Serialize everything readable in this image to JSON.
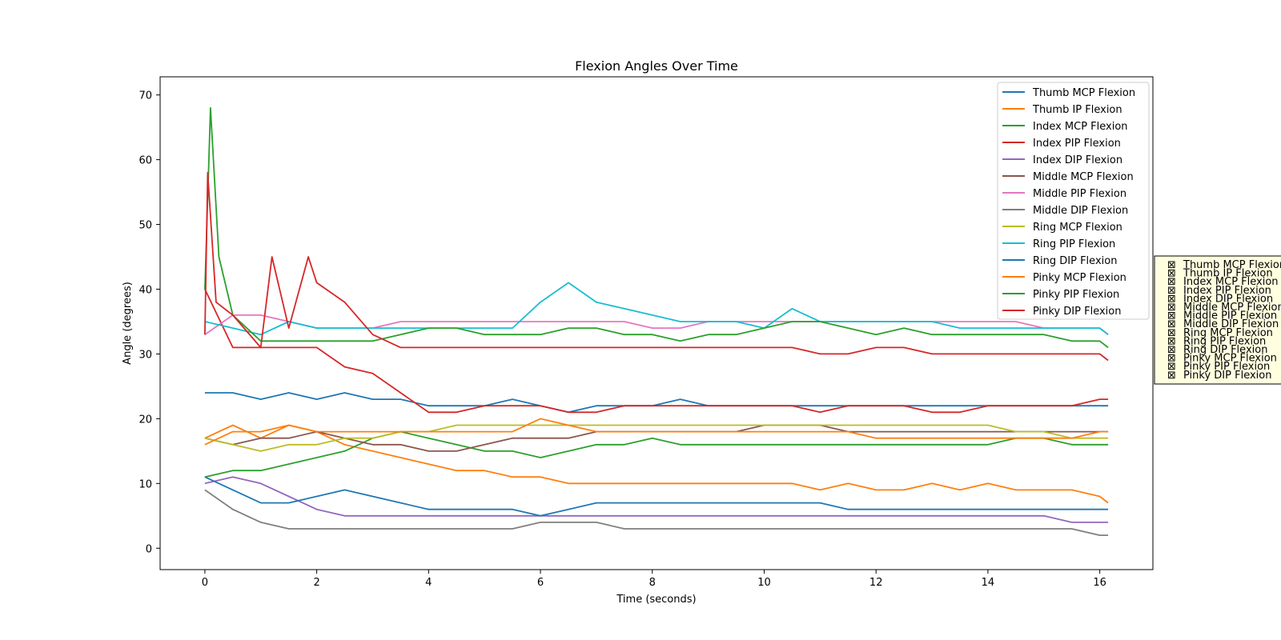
{
  "chart_data": {
    "type": "line",
    "title": "Flexion Angles Over Time",
    "xlabel": "Time (seconds)",
    "ylabel": "Angle (degrees)",
    "xlim": [
      -0.8,
      16.95
    ],
    "ylim": [
      -3.3,
      72.8
    ],
    "xticks": [
      0,
      2,
      4,
      6,
      8,
      10,
      12,
      14,
      16
    ],
    "yticks": [
      0,
      10,
      20,
      30,
      40,
      50,
      60,
      70
    ],
    "grid": false,
    "legend_position": "top-right",
    "series": [
      {
        "name": "Thumb MCP Flexion",
        "color": "#1f77b4",
        "x": [
          0,
          0.5,
          1,
          1.5,
          2,
          2.5,
          3,
          3.5,
          4,
          4.5,
          5,
          5.5,
          6,
          6.5,
          7,
          7.5,
          8,
          8.5,
          9,
          9.5,
          10,
          10.5,
          11,
          11.5,
          12,
          12.5,
          13,
          13.5,
          14,
          14.5,
          15,
          15.5,
          16,
          16.15
        ],
        "y": [
          24,
          24,
          23,
          24,
          23,
          24,
          23,
          23,
          22,
          22,
          22,
          23,
          22,
          21,
          22,
          22,
          22,
          23,
          22,
          22,
          22,
          22,
          22,
          22,
          22,
          22,
          22,
          22,
          22,
          22,
          22,
          22,
          22,
          22
        ]
      },
      {
        "name": "Thumb IP Flexion",
        "color": "#ff7f0e",
        "x": [
          0,
          0.5,
          1,
          1.5,
          2,
          2.5,
          3,
          3.5,
          4,
          4.5,
          5,
          5.5,
          6,
          6.5,
          7,
          7.5,
          8,
          8.5,
          9,
          9.5,
          10,
          10.5,
          11,
          11.5,
          12,
          12.5,
          13,
          13.5,
          14,
          14.5,
          15,
          15.5,
          16,
          16.15
        ],
        "y": [
          17,
          19,
          17,
          19,
          18,
          16,
          15,
          14,
          13,
          12,
          12,
          11,
          11,
          10,
          10,
          10,
          10,
          10,
          10,
          10,
          10,
          10,
          9,
          10,
          9,
          9,
          10,
          9,
          10,
          9,
          9,
          9,
          8,
          7
        ]
      },
      {
        "name": "Index MCP Flexion",
        "color": "#2ca02c",
        "x": [
          0,
          0.5,
          1,
          1.5,
          2,
          2.5,
          3,
          3.5,
          4,
          4.5,
          5,
          5.5,
          6,
          6.5,
          7,
          7.5,
          8,
          8.5,
          9,
          9.5,
          10,
          10.5,
          11,
          11.5,
          12,
          12.5,
          13,
          13.5,
          14,
          14.5,
          15,
          15.5,
          16,
          16.15
        ],
        "y": [
          11,
          12,
          12,
          13,
          14,
          15,
          17,
          18,
          17,
          16,
          15,
          15,
          14,
          15,
          16,
          16,
          17,
          16,
          16,
          16,
          16,
          16,
          16,
          16,
          16,
          16,
          16,
          16,
          16,
          17,
          17,
          16,
          16,
          16
        ]
      },
      {
        "name": "Index PIP Flexion",
        "color": "#d62728",
        "x": [
          0,
          0.5,
          1,
          1.5,
          2,
          2.5,
          3,
          3.5,
          4,
          4.5,
          5,
          5.5,
          6,
          6.5,
          7,
          7.5,
          8,
          8.5,
          9,
          9.5,
          10,
          10.5,
          11,
          11.5,
          12,
          12.5,
          13,
          13.5,
          14,
          14.5,
          15,
          15.5,
          16,
          16.15
        ],
        "y": [
          40,
          31,
          31,
          31,
          31,
          28,
          27,
          24,
          21,
          21,
          22,
          22,
          22,
          21,
          21,
          22,
          22,
          22,
          22,
          22,
          22,
          22,
          21,
          22,
          22,
          22,
          21,
          21,
          22,
          22,
          22,
          22,
          23,
          23
        ]
      },
      {
        "name": "Index DIP Flexion",
        "color": "#9467bd",
        "x": [
          0,
          0.5,
          1,
          1.5,
          2,
          2.5,
          3,
          3.5,
          4,
          4.5,
          5,
          5.5,
          6,
          6.5,
          7,
          7.5,
          8,
          8.5,
          9,
          9.5,
          10,
          10.5,
          11,
          11.5,
          12,
          12.5,
          13,
          13.5,
          14,
          14.5,
          15,
          15.5,
          16,
          16.15
        ],
        "y": [
          10,
          11,
          10,
          8,
          6,
          5,
          5,
          5,
          5,
          5,
          5,
          5,
          5,
          5,
          5,
          5,
          5,
          5,
          5,
          5,
          5,
          5,
          5,
          5,
          5,
          5,
          5,
          5,
          5,
          5,
          5,
          4,
          4,
          4
        ]
      },
      {
        "name": "Middle MCP Flexion",
        "color": "#8c564b",
        "x": [
          0,
          0.5,
          1,
          1.5,
          2,
          2.5,
          3,
          3.5,
          4,
          4.5,
          5,
          5.5,
          6,
          6.5,
          7,
          7.5,
          8,
          8.5,
          9,
          9.5,
          10,
          10.5,
          11,
          11.5,
          12,
          12.5,
          13,
          13.5,
          14,
          14.5,
          15,
          15.5,
          16,
          16.15
        ],
        "y": [
          17,
          16,
          17,
          17,
          18,
          17,
          16,
          16,
          15,
          15,
          16,
          17,
          17,
          17,
          18,
          18,
          18,
          18,
          18,
          18,
          19,
          19,
          19,
          18,
          18,
          18,
          18,
          18,
          18,
          18,
          18,
          18,
          18,
          18
        ]
      },
      {
        "name": "Middle PIP Flexion",
        "color": "#e377c2",
        "x": [
          0,
          0.5,
          1,
          1.5,
          2,
          2.5,
          3,
          3.5,
          4,
          4.5,
          5,
          5.5,
          6,
          6.5,
          7,
          7.5,
          8,
          8.5,
          9,
          9.5,
          10,
          10.5,
          11,
          11.5,
          12,
          12.5,
          13,
          13.5,
          14,
          14.5,
          15,
          15.5,
          16,
          16.15
        ],
        "y": [
          33,
          36,
          36,
          35,
          34,
          34,
          34,
          35,
          35,
          35,
          35,
          35,
          35,
          35,
          35,
          35,
          34,
          34,
          35,
          35,
          35,
          35,
          35,
          35,
          35,
          35,
          35,
          35,
          35,
          35,
          34,
          34,
          34,
          33
        ]
      },
      {
        "name": "Middle DIP Flexion",
        "color": "#7f7f7f",
        "x": [
          0,
          0.5,
          1,
          1.5,
          2,
          2.5,
          3,
          3.5,
          4,
          4.5,
          5,
          5.5,
          6,
          6.5,
          7,
          7.5,
          8,
          8.5,
          9,
          9.5,
          10,
          10.5,
          11,
          11.5,
          12,
          12.5,
          13,
          13.5,
          14,
          14.5,
          15,
          15.5,
          16,
          16.15
        ],
        "y": [
          9,
          6,
          4,
          3,
          3,
          3,
          3,
          3,
          3,
          3,
          3,
          3,
          4,
          4,
          4,
          3,
          3,
          3,
          3,
          3,
          3,
          3,
          3,
          3,
          3,
          3,
          3,
          3,
          3,
          3,
          3,
          3,
          2,
          2
        ]
      },
      {
        "name": "Ring MCP Flexion",
        "color": "#bcbd22",
        "x": [
          0,
          0.5,
          1,
          1.5,
          2,
          2.5,
          3,
          3.5,
          4,
          4.5,
          5,
          5.5,
          6,
          6.5,
          7,
          7.5,
          8,
          8.5,
          9,
          9.5,
          10,
          10.5,
          11,
          11.5,
          12,
          12.5,
          13,
          13.5,
          14,
          14.5,
          15,
          15.5,
          16,
          16.15
        ],
        "y": [
          17,
          16,
          15,
          16,
          16,
          17,
          17,
          18,
          18,
          19,
          19,
          19,
          19,
          19,
          19,
          19,
          19,
          19,
          19,
          19,
          19,
          19,
          19,
          19,
          19,
          19,
          19,
          19,
          19,
          18,
          18,
          17,
          17,
          17
        ]
      },
      {
        "name": "Ring PIP Flexion",
        "color": "#17becf",
        "x": [
          0,
          0.5,
          1,
          1.5,
          2,
          2.5,
          3,
          3.5,
          4,
          4.5,
          5,
          5.5,
          6,
          6.5,
          7,
          7.5,
          8,
          8.5,
          9,
          9.5,
          10,
          10.5,
          11,
          11.5,
          12,
          12.5,
          13,
          13.5,
          14,
          14.5,
          15,
          15.5,
          16,
          16.15
        ],
        "y": [
          35,
          34,
          33,
          35,
          34,
          34,
          34,
          34,
          34,
          34,
          34,
          34,
          38,
          41,
          38,
          37,
          36,
          35,
          35,
          35,
          34,
          37,
          35,
          35,
          35,
          35,
          35,
          34,
          34,
          34,
          34,
          34,
          34,
          33
        ]
      },
      {
        "name": "Ring DIP Flexion",
        "color": "#1f77b4",
        "x": [
          0,
          0.5,
          1,
          1.5,
          2,
          2.5,
          3,
          3.5,
          4,
          4.5,
          5,
          5.5,
          6,
          6.5,
          7,
          7.5,
          8,
          8.5,
          9,
          9.5,
          10,
          10.5,
          11,
          11.5,
          12,
          12.5,
          13,
          13.5,
          14,
          14.5,
          15,
          15.5,
          16,
          16.15
        ],
        "y": [
          11,
          9,
          7,
          7,
          8,
          9,
          8,
          7,
          6,
          6,
          6,
          6,
          5,
          6,
          7,
          7,
          7,
          7,
          7,
          7,
          7,
          7,
          7,
          6,
          6,
          6,
          6,
          6,
          6,
          6,
          6,
          6,
          6,
          6
        ]
      },
      {
        "name": "Pinky MCP Flexion",
        "color": "#ff7f0e",
        "x": [
          0,
          0.5,
          1,
          1.5,
          2,
          2.5,
          3,
          3.5,
          4,
          4.5,
          5,
          5.5,
          6,
          6.5,
          7,
          7.5,
          8,
          8.5,
          9,
          9.5,
          10,
          10.5,
          11,
          11.5,
          12,
          12.5,
          13,
          13.5,
          14,
          14.5,
          15,
          15.5,
          16,
          16.15
        ],
        "y": [
          16,
          18,
          18,
          19,
          18,
          18,
          18,
          18,
          18,
          18,
          18,
          18,
          20,
          19,
          18,
          18,
          18,
          18,
          18,
          18,
          18,
          18,
          18,
          18,
          17,
          17,
          17,
          17,
          17,
          17,
          17,
          17,
          18,
          18
        ]
      },
      {
        "name": "Pinky PIP Flexion",
        "color": "#2ca02c",
        "x": [
          0,
          0.1,
          0.25,
          0.5,
          1,
          1.5,
          2,
          2.5,
          3,
          3.5,
          4,
          4.5,
          5,
          5.5,
          6,
          6.5,
          7,
          7.5,
          8,
          8.5,
          9,
          9.5,
          10,
          10.5,
          11,
          11.5,
          12,
          12.5,
          13,
          13.5,
          14,
          14.5,
          15,
          15.5,
          16,
          16.15
        ],
        "y": [
          40,
          68,
          45,
          36,
          32,
          32,
          32,
          32,
          32,
          33,
          34,
          34,
          33,
          33,
          33,
          34,
          34,
          33,
          33,
          32,
          33,
          33,
          34,
          35,
          35,
          34,
          33,
          34,
          33,
          33,
          33,
          33,
          33,
          32,
          32,
          31
        ]
      },
      {
        "name": "Pinky DIP Flexion",
        "color": "#d62728",
        "x": [
          0,
          0.05,
          0.2,
          0.5,
          1,
          1.2,
          1.5,
          1.85,
          2,
          2.5,
          3,
          3.5,
          4,
          4.5,
          5,
          5.5,
          6,
          6.5,
          7,
          7.5,
          8,
          8.5,
          9,
          9.5,
          10,
          10.5,
          11,
          11.5,
          12,
          12.5,
          13,
          13.5,
          14,
          14.5,
          15,
          15.5,
          16,
          16.15
        ],
        "y": [
          33,
          58,
          38,
          36,
          31,
          45,
          34,
          45,
          41,
          38,
          33,
          31,
          31,
          31,
          31,
          31,
          31,
          31,
          31,
          31,
          31,
          31,
          31,
          31,
          31,
          31,
          30,
          30,
          31,
          31,
          30,
          30,
          30,
          30,
          30,
          30,
          30,
          29
        ]
      }
    ]
  },
  "side_panel": {
    "marker": "⊠",
    "items": [
      "Thumb MCP Flexion",
      "Thumb IP Flexion",
      "Index MCP Flexion",
      "Index PIP Flexion",
      "Index DIP Flexion",
      "Middle MCP Flexion",
      "Middle PIP Flexion",
      "Middle DIP Flexion",
      "Ring MCP Flexion",
      "Ring PIP Flexion",
      "Ring DIP Flexion",
      "Pinky MCP Flexion",
      "Pinky PIP Flexion",
      "Pinky DIP Flexion"
    ]
  }
}
